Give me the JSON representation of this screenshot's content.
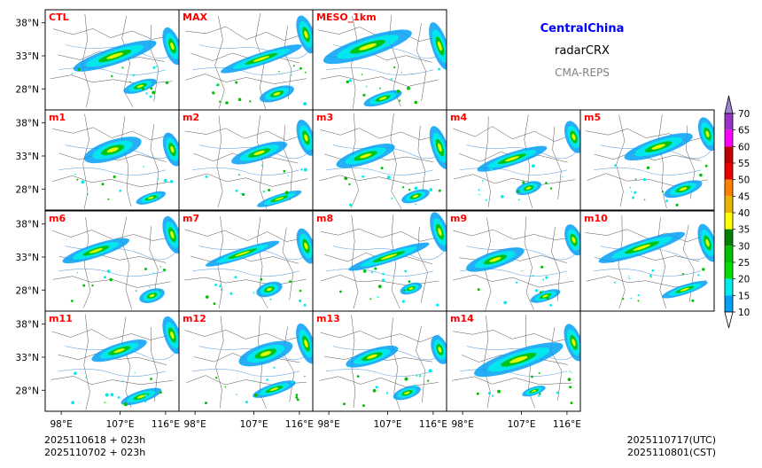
{
  "header": {
    "region": "CentralChina",
    "variable": "radarCRX",
    "system": "CMA-REPS"
  },
  "colors": {
    "region_title": "#0000ff",
    "variable_title": "#000000",
    "system_title": "#808080",
    "panel_label": "#ff0000"
  },
  "panels": [
    {
      "id": "CTL",
      "label": "CTL"
    },
    {
      "id": "MAX",
      "label": "MAX"
    },
    {
      "id": "MESO",
      "label": "MESO_1km"
    },
    {
      "id": "m1",
      "label": "m1"
    },
    {
      "id": "m2",
      "label": "m2"
    },
    {
      "id": "m3",
      "label": "m3"
    },
    {
      "id": "m4",
      "label": "m4"
    },
    {
      "id": "m5",
      "label": "m5"
    },
    {
      "id": "m6",
      "label": "m6"
    },
    {
      "id": "m7",
      "label": "m7"
    },
    {
      "id": "m8",
      "label": "m8"
    },
    {
      "id": "m9",
      "label": "m9"
    },
    {
      "id": "m10",
      "label": "m10"
    },
    {
      "id": "m11",
      "label": "m11"
    },
    {
      "id": "m12",
      "label": "m12"
    },
    {
      "id": "m13",
      "label": "m13"
    },
    {
      "id": "m14",
      "label": "m14"
    }
  ],
  "axes": {
    "lat_ticks": [
      "38°N",
      "33°N",
      "28°N"
    ],
    "lon_ticks": [
      "98°E",
      "107°E",
      "116°E"
    ]
  },
  "colorbar": {
    "levels": [
      "70",
      "65",
      "60",
      "55",
      "50",
      "45",
      "40",
      "35",
      "30",
      "25",
      "20",
      "15",
      "10"
    ],
    "colors": [
      "#9a33c8",
      "#ff00ff",
      "#c00000",
      "#e80000",
      "#ff7f00",
      "#e8b400",
      "#ffff00",
      "#007f00",
      "#00c000",
      "#00e000",
      "#00ecec",
      "#01a0f6"
    ],
    "over_color": "#9f86cf",
    "under_color": "#ffffff"
  },
  "footer": {
    "init_utc": "2025110618  +  023h",
    "init_cst": "2025110702  +  023h",
    "valid_utc": "2025110717(UTC)",
    "valid_cst": "2025110801(CST)"
  }
}
